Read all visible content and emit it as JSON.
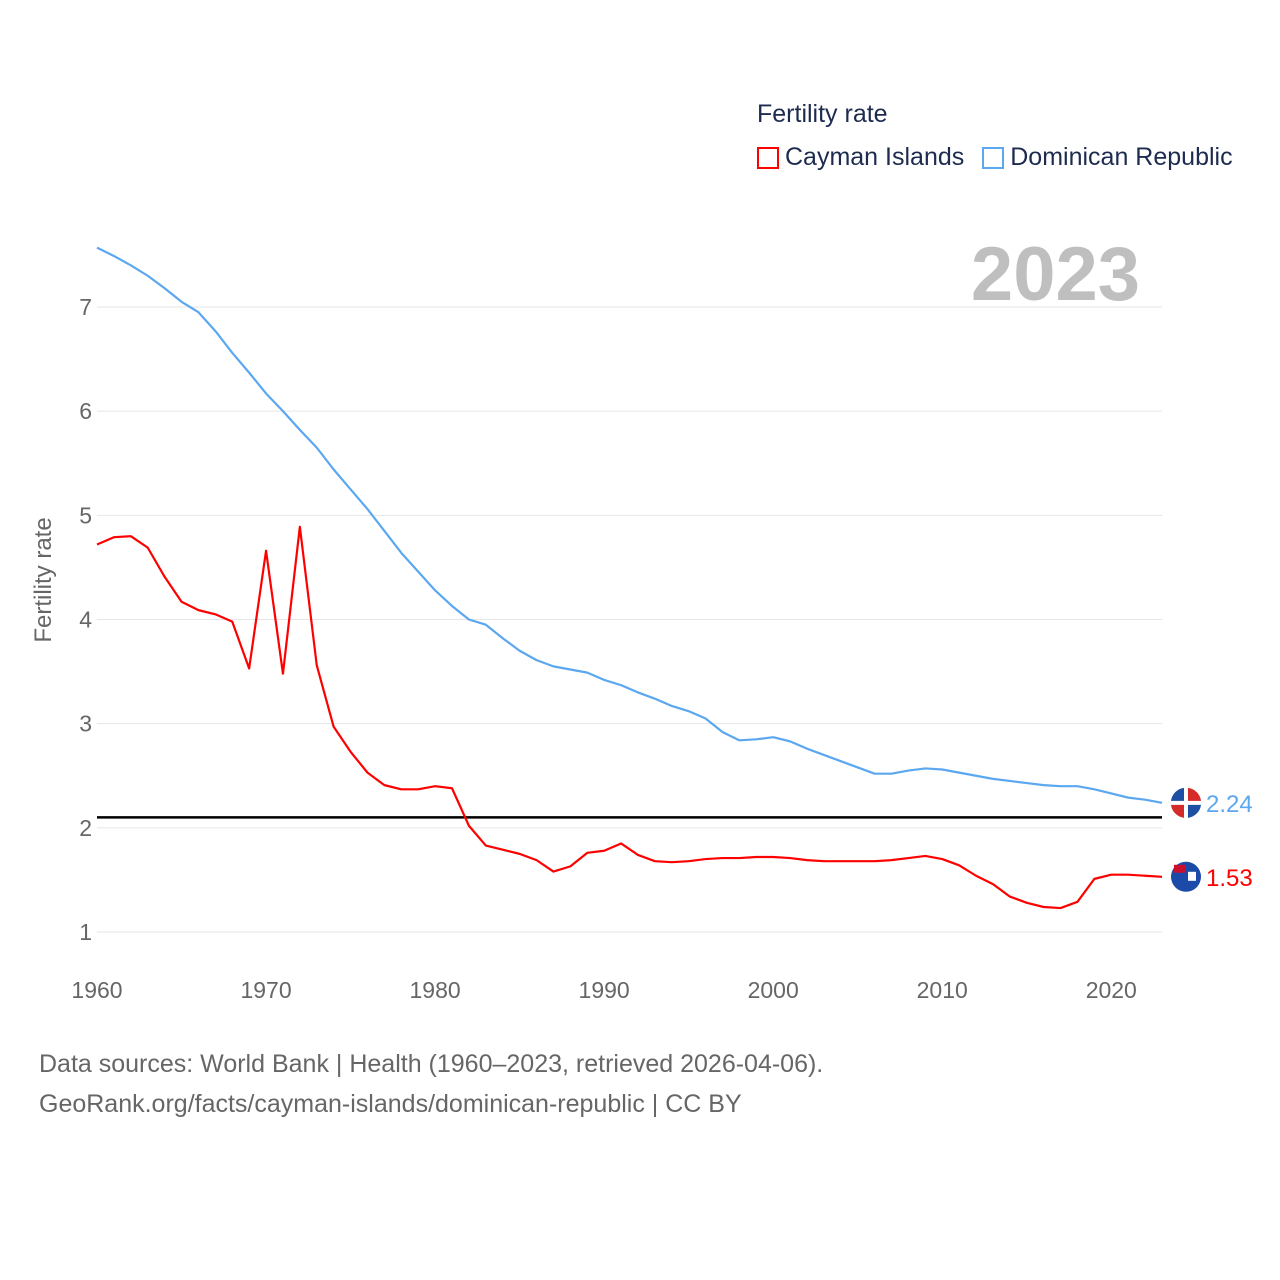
{
  "legend": {
    "title": "Fertility rate",
    "items": [
      {
        "label": "Cayman Islands",
        "color": "#ff0000"
      },
      {
        "label": "Dominican Republic",
        "color": "#5ba7f0"
      }
    ]
  },
  "year_label": "2023",
  "footer": {
    "line1": "Data sources: World Bank | Health (1960–2023, retrieved 2026-04-06).",
    "line2": "GeoRank.org/facts/cayman-islands/dominican-republic | CC BY"
  },
  "chart_data": {
    "type": "line",
    "ylabel": "Fertility rate",
    "xlabel": "",
    "xlim": [
      1960,
      2023
    ],
    "ylim": [
      0.7,
      7.6
    ],
    "xticks": [
      "1960",
      "1970",
      "1980",
      "1990",
      "2000",
      "2010",
      "2020"
    ],
    "yticks": [
      "1",
      "2",
      "3",
      "4",
      "5",
      "6",
      "7"
    ],
    "grid": true,
    "reference_line": 2.1,
    "x_start": 1960,
    "series": [
      {
        "name": "Dominican Republic",
        "color": "#5ba7f0",
        "end_label": "2.24",
        "values": [
          7.57,
          7.49,
          7.4,
          7.3,
          7.18,
          7.05,
          6.95,
          6.77,
          6.56,
          6.37,
          6.17,
          6.0,
          5.82,
          5.65,
          5.44,
          5.25,
          5.06,
          4.85,
          4.64,
          4.46,
          4.28,
          4.13,
          4.0,
          3.95,
          3.82,
          3.7,
          3.61,
          3.55,
          3.52,
          3.49,
          3.42,
          3.37,
          3.3,
          3.24,
          3.17,
          3.12,
          3.05,
          2.92,
          2.84,
          2.85,
          2.87,
          2.83,
          2.76,
          2.7,
          2.64,
          2.58,
          2.52,
          2.52,
          2.55,
          2.57,
          2.56,
          2.53,
          2.5,
          2.47,
          2.45,
          2.43,
          2.41,
          2.4,
          2.4,
          2.37,
          2.33,
          2.29,
          2.27,
          2.24
        ]
      },
      {
        "name": "Cayman Islands",
        "color": "#ff0000",
        "end_label": "1.53",
        "values": [
          4.72,
          4.79,
          4.8,
          4.69,
          4.41,
          4.17,
          4.09,
          4.05,
          3.98,
          3.53,
          4.66,
          3.48,
          4.89,
          3.56,
          2.97,
          2.73,
          2.53,
          2.41,
          2.37,
          2.37,
          2.4,
          2.38,
          2.02,
          1.83,
          1.79,
          1.75,
          1.69,
          1.58,
          1.63,
          1.76,
          1.78,
          1.85,
          1.74,
          1.68,
          1.67,
          1.68,
          1.7,
          1.71,
          1.71,
          1.72,
          1.72,
          1.71,
          1.69,
          1.68,
          1.68,
          1.68,
          1.68,
          1.69,
          1.71,
          1.73,
          1.7,
          1.64,
          1.54,
          1.46,
          1.34,
          1.28,
          1.24,
          1.23,
          1.29,
          1.51,
          1.55,
          1.55,
          1.54,
          1.53
        ]
      }
    ]
  }
}
